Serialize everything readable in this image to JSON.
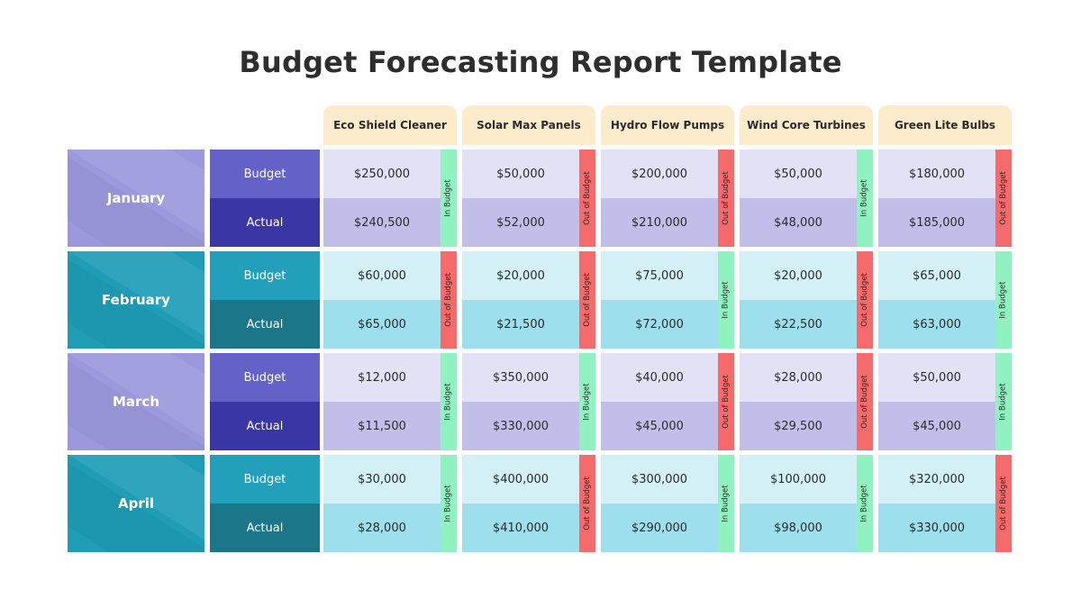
{
  "title": "Budget Forecasting Report Template",
  "products": [
    "Eco Shield Cleaner",
    "Solar Max Panels",
    "Hydro Flow Pumps",
    "Wind Core Turbines",
    "Green Lite Bulbs"
  ],
  "labels": {
    "budget": "Budget",
    "actual": "Actual"
  },
  "statuses": {
    "in": "In Budget",
    "out": "Out of Budget"
  },
  "colors": {
    "header_bg": "#fdeccb",
    "in_budget": "#8ff2c0",
    "out_budget": "#f56b6b",
    "purple_month": "#9c98de",
    "purple_budget_label": "#6461c9",
    "purple_actual_label": "#3b36a6",
    "purple_budget_cell": "#e2e1f6",
    "purple_actual_cell": "#c1bfea",
    "teal_month": "#1f9db7",
    "teal_budget_label": "#229fbb",
    "teal_actual_label": "#1b7689",
    "teal_budget_cell": "#d2f0f6",
    "teal_actual_cell": "#9ddfec"
  },
  "rows": [
    {
      "month": "January",
      "theme": "purple",
      "cells": [
        {
          "budget": "$250,000",
          "actual": "$240,500",
          "status": "in"
        },
        {
          "budget": "$50,000",
          "actual": "$52,000",
          "status": "out"
        },
        {
          "budget": "$200,000",
          "actual": "$210,000",
          "status": "out"
        },
        {
          "budget": "$50,000",
          "actual": "$48,000",
          "status": "in"
        },
        {
          "budget": "$180,000",
          "actual": "$185,000",
          "status": "out"
        }
      ]
    },
    {
      "month": "February",
      "theme": "teal",
      "cells": [
        {
          "budget": "$60,000",
          "actual": "$65,000",
          "status": "out"
        },
        {
          "budget": "$20,000",
          "actual": "$21,500",
          "status": "out"
        },
        {
          "budget": "$75,000",
          "actual": "$72,000",
          "status": "in"
        },
        {
          "budget": "$20,000",
          "actual": "$22,500",
          "status": "out"
        },
        {
          "budget": "$65,000",
          "actual": "$63,000",
          "status": "in"
        }
      ]
    },
    {
      "month": "March",
      "theme": "purple",
      "cells": [
        {
          "budget": "$12,000",
          "actual": "$11,500",
          "status": "in"
        },
        {
          "budget": "$350,000",
          "actual": "$330,000",
          "status": "in"
        },
        {
          "budget": "$40,000",
          "actual": "$45,000",
          "status": "out"
        },
        {
          "budget": "$28,000",
          "actual": "$29,500",
          "status": "out"
        },
        {
          "budget": "$50,000",
          "actual": "$45,000",
          "status": "in"
        }
      ]
    },
    {
      "month": "April",
      "theme": "teal",
      "cells": [
        {
          "budget": "$30,000",
          "actual": "$28,000",
          "status": "in"
        },
        {
          "budget": "$400,000",
          "actual": "$410,000",
          "status": "out"
        },
        {
          "budget": "$300,000",
          "actual": "$290,000",
          "status": "in"
        },
        {
          "budget": "$100,000",
          "actual": "$98,000",
          "status": "in"
        },
        {
          "budget": "$320,000",
          "actual": "$330,000",
          "status": "out"
        }
      ]
    }
  ]
}
